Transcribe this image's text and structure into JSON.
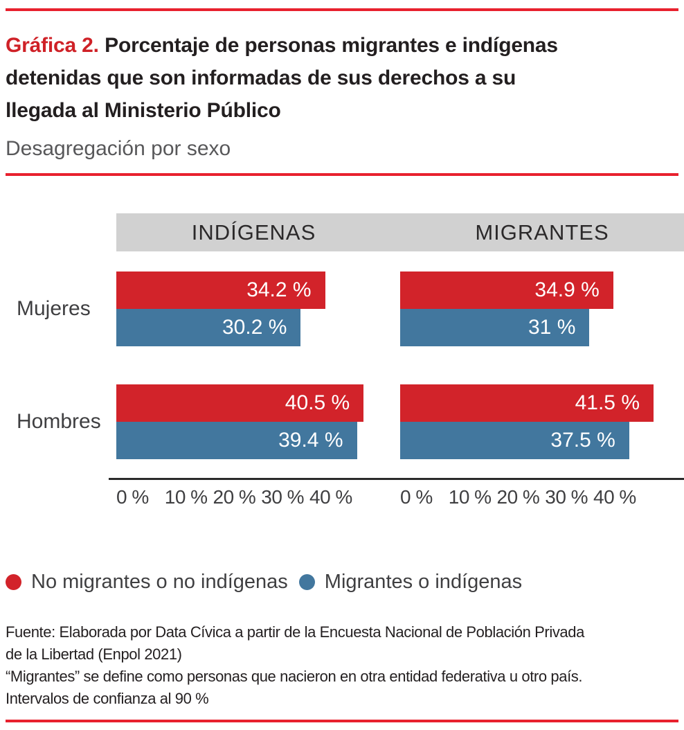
{
  "header": {
    "label": "Gráfica 2.",
    "title": "Porcentaje de personas migrantes e indígenas detenidas que son informadas de sus derechos a su llegada al Ministerio Público",
    "title_lines": [
      "Porcentaje de personas migrantes e indígenas",
      "detenidas que son informadas de sus derechos a su",
      "llegada al Ministerio Público"
    ],
    "subtitle": "Desagregación por sexo"
  },
  "chart_data": {
    "type": "bar",
    "orientation": "horizontal",
    "unit": "%",
    "xlim": [
      0,
      45
    ],
    "x_ticks": [
      "0 %",
      "10 %",
      "20 %",
      "30 %",
      "40 %"
    ],
    "grid": false,
    "legend_position": "bottom",
    "groups": [
      "Mujeres",
      "Hombres"
    ],
    "colors": {
      "No migrantes o no indígenas": "#d2232a",
      "Migrantes o indígenas": "#42779e"
    },
    "panels": [
      {
        "name": "INDÍGENAS",
        "rows": [
          {
            "group": "Mujeres",
            "bars": [
              {
                "series": "No migrantes o no indígenas",
                "value": 34.2,
                "label": "34.2 %"
              },
              {
                "series": "Migrantes o indígenas",
                "value": 30.2,
                "label": "30.2 %"
              }
            ]
          },
          {
            "group": "Hombres",
            "bars": [
              {
                "series": "No migrantes o no indígenas",
                "value": 40.5,
                "label": "40.5 %"
              },
              {
                "series": "Migrantes o indígenas",
                "value": 39.4,
                "label": "39.4 %"
              }
            ]
          }
        ]
      },
      {
        "name": "MIGRANTES",
        "rows": [
          {
            "group": "Mujeres",
            "bars": [
              {
                "series": "No migrantes o no indígenas",
                "value": 34.9,
                "label": "34.9 %"
              },
              {
                "series": "Migrantes o indígenas",
                "value": 31,
                "label": "31 %"
              }
            ]
          },
          {
            "group": "Hombres",
            "bars": [
              {
                "series": "No migrantes o no indígenas",
                "value": 41.5,
                "label": "41.5 %"
              },
              {
                "series": "Migrantes o indígenas",
                "value": 37.5,
                "label": "37.5 %"
              }
            ]
          }
        ]
      }
    ]
  },
  "legend": {
    "items": [
      {
        "label": "No migrantes o no indígenas",
        "color": "#d2232a"
      },
      {
        "label": "Migrantes o indígenas",
        "color": "#42779e"
      }
    ]
  },
  "footer": {
    "source_lines": [
      "Fuente: Elaborada por Data Cívica a partir de la Encuesta Nacional de Población Privada",
      "de la Libertad (Enpol 2021)"
    ],
    "note_migrantes": "“Migrantes” se define como personas que nacieron en otra entidad federativa u otro país.",
    "note_ci": "Intervalos de confianza al 90 %"
  },
  "colors": {
    "accent_rule_red": "#e8212e",
    "title_red": "#cf2127",
    "bar_red": "#d2232a",
    "bar_blue": "#42779e",
    "band_gray": "#d1d1d1"
  }
}
